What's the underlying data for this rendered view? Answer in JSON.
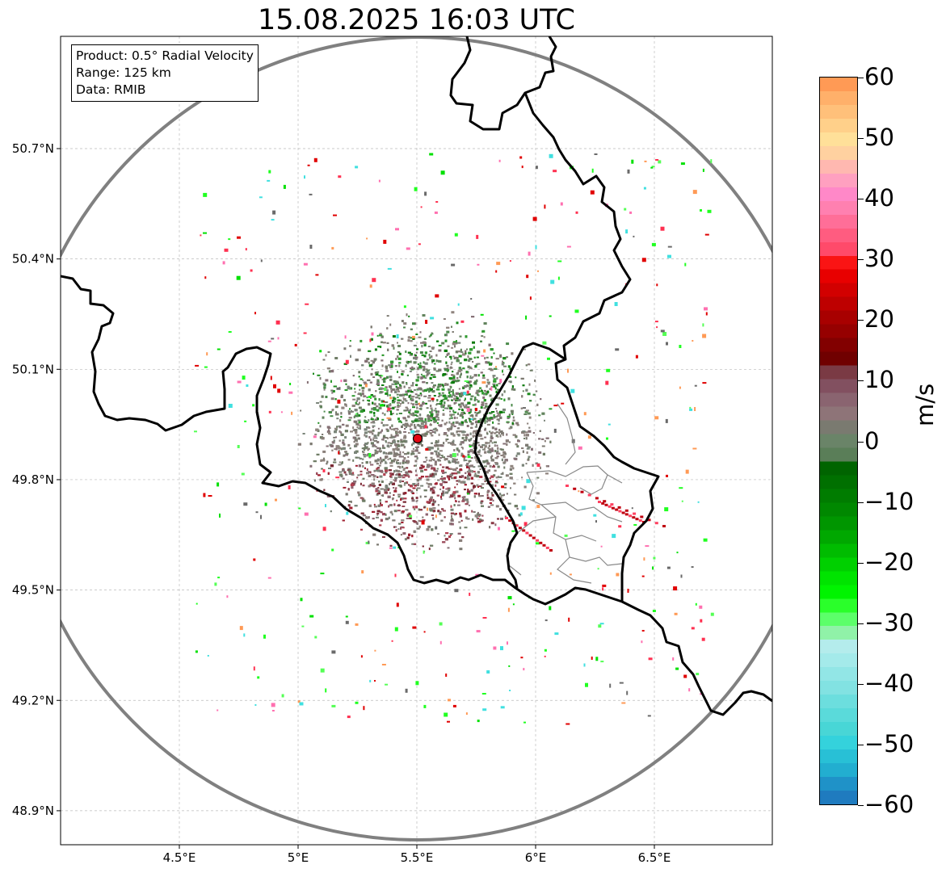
{
  "title": "15.08.2025 16:03 UTC",
  "info_box": {
    "product": "Product: 0.5° Radial Velocity",
    "range": "Range: 125 km",
    "source": "Data: RMIB"
  },
  "map": {
    "lon_range": [
      4.0,
      7.0
    ],
    "lat_range": [
      48.8,
      51.0
    ],
    "x_ticks": [
      "4.5°E",
      "5°E",
      "5.5°E",
      "6°E",
      "6.5°E"
    ],
    "y_ticks": [
      "50.7°N",
      "50.4°N",
      "50.1°N",
      "49.8°N",
      "49.5°N",
      "49.2°N",
      "48.9°N"
    ],
    "grid": true,
    "radar_site": {
      "lon": 5.5,
      "lat": 49.92,
      "color": "#e30613"
    },
    "range_ring_color": "#808080",
    "border_color": "#000000",
    "admin_line_color": "#888888"
  },
  "colorbar": {
    "label": "m/s",
    "ticks": [
      "60",
      "50",
      "40",
      "30",
      "20",
      "10",
      "0",
      "−10",
      "−20",
      "−30",
      "−40",
      "−50",
      "−60"
    ],
    "colors_top_to_bottom": [
      "#ff9a55",
      "#ffb06a",
      "#ffc07a",
      "#ffd08a",
      "#ffe099",
      "#ffd1a0",
      "#ffb8b0",
      "#ffa0c0",
      "#ff88c8",
      "#ff80b0",
      "#ff6e98",
      "#ff5c80",
      "#ff4a6a",
      "#fa1414",
      "#e80000",
      "#d20000",
      "#be0000",
      "#a80000",
      "#960000",
      "#820000",
      "#700000",
      "#7a3a44",
      "#825060",
      "#8a6470",
      "#8e7478",
      "#7a7a70",
      "#6a8468",
      "#5a7e58",
      "#006400",
      "#007000",
      "#007c00",
      "#008800",
      "#009600",
      "#00a800",
      "#00bc00",
      "#00d000",
      "#00e400",
      "#00f400",
      "#2aff2a",
      "#5cff6a",
      "#90f2a8",
      "#b4ecec",
      "#a4eaea",
      "#92e6e6",
      "#82e2e2",
      "#6cdede",
      "#5adada",
      "#48d6d6",
      "#34d2dc",
      "#28c0d6",
      "#22aed0",
      "#1f92c8",
      "#1f7bbf"
    ]
  }
}
